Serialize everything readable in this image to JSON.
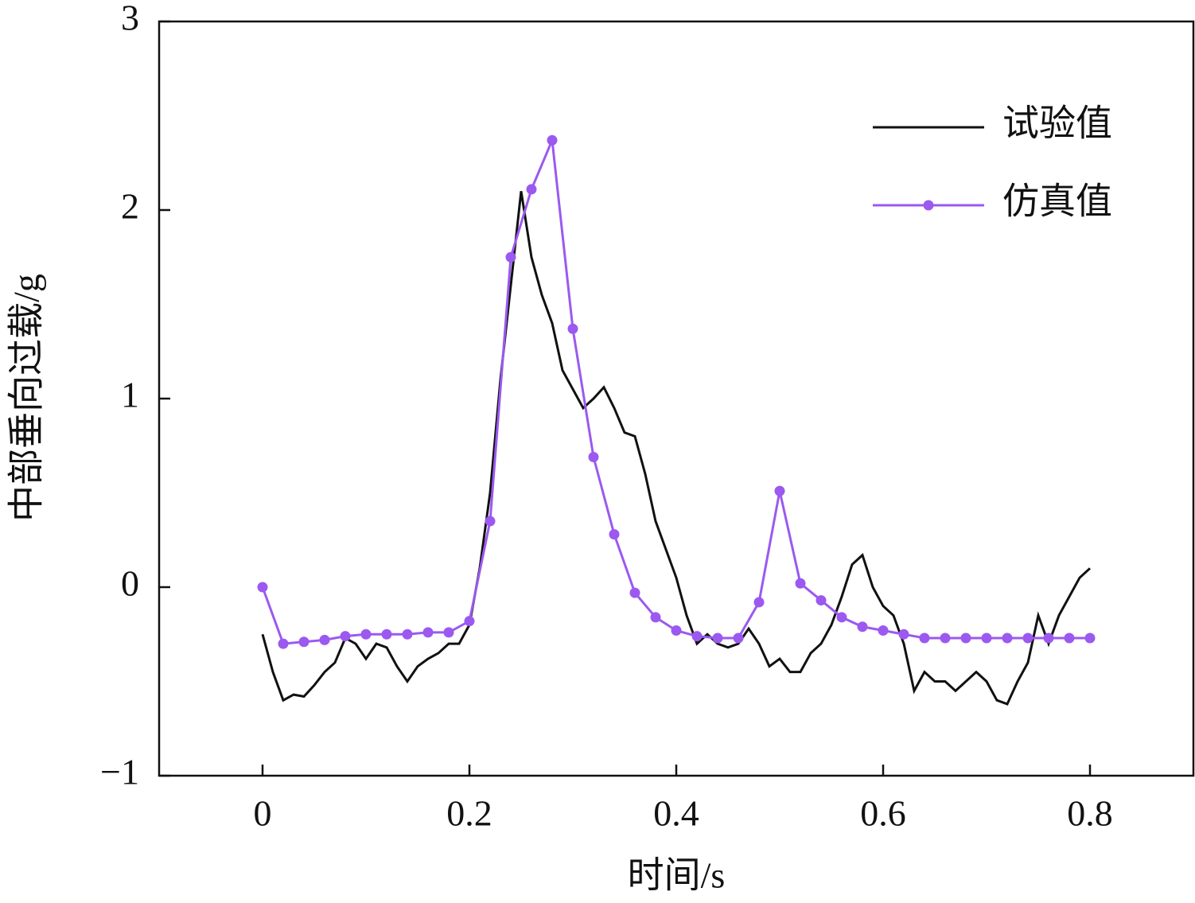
{
  "chart_data": {
    "type": "line",
    "xlabel": "时间/s",
    "ylabel": "中部垂向过载/g",
    "xlim": [
      -0.1,
      0.9
    ],
    "xticks": [
      0,
      0.2,
      0.4,
      0.6,
      0.8
    ],
    "ylim": [
      -1,
      3
    ],
    "yticks": [
      {
        "value": -1,
        "label": "−1"
      },
      0,
      1,
      2,
      3
    ],
    "legend": "upper right",
    "series": [
      {
        "name": "试验值",
        "color": "#111111",
        "marker": false,
        "x": [
          0,
          0.01,
          0.02,
          0.03,
          0.04,
          0.05,
          0.06,
          0.07,
          0.08,
          0.09,
          0.1,
          0.11,
          0.12,
          0.13,
          0.14,
          0.15,
          0.16,
          0.17,
          0.18,
          0.19,
          0.2,
          0.21,
          0.22,
          0.23,
          0.24,
          0.25,
          0.26,
          0.27,
          0.28,
          0.29,
          0.3,
          0.31,
          0.32,
          0.33,
          0.34,
          0.35,
          0.36,
          0.37,
          0.38,
          0.39,
          0.4,
          0.41,
          0.42,
          0.43,
          0.44,
          0.45,
          0.46,
          0.47,
          0.48,
          0.49,
          0.5,
          0.51,
          0.52,
          0.53,
          0.54,
          0.55,
          0.56,
          0.57,
          0.58,
          0.59,
          0.6,
          0.61,
          0.62,
          0.63,
          0.64,
          0.65,
          0.66,
          0.67,
          0.68,
          0.69,
          0.7,
          0.71,
          0.72,
          0.73,
          0.74,
          0.75,
          0.76,
          0.77,
          0.78,
          0.79,
          0.8
        ],
        "values": [
          -0.25,
          -0.45,
          -0.6,
          -0.57,
          -0.58,
          -0.52,
          -0.45,
          -0.4,
          -0.27,
          -0.3,
          -0.38,
          -0.3,
          -0.32,
          -0.42,
          -0.5,
          -0.42,
          -0.38,
          -0.35,
          -0.3,
          -0.3,
          -0.2,
          0.1,
          0.5,
          1.1,
          1.6,
          2.1,
          1.75,
          1.55,
          1.4,
          1.15,
          1.05,
          0.95,
          1.0,
          1.06,
          0.95,
          0.82,
          0.8,
          0.6,
          0.35,
          0.2,
          0.05,
          -0.15,
          -0.3,
          -0.25,
          -0.3,
          -0.32,
          -0.3,
          -0.22,
          -0.3,
          -0.42,
          -0.38,
          -0.45,
          -0.45,
          -0.35,
          -0.3,
          -0.2,
          -0.05,
          0.12,
          0.17,
          0.0,
          -0.1,
          -0.15,
          -0.3,
          -0.55,
          -0.45,
          -0.5,
          -0.5,
          -0.55,
          -0.5,
          -0.45,
          -0.5,
          -0.6,
          -0.62,
          -0.5,
          -0.4,
          -0.15,
          -0.3,
          -0.15,
          -0.05,
          0.05,
          0.1
        ]
      },
      {
        "name": "仿真值",
        "color": "#9b59f0",
        "marker": true,
        "x": [
          0,
          0.02,
          0.04,
          0.06,
          0.08,
          0.1,
          0.12,
          0.14,
          0.16,
          0.18,
          0.2,
          0.22,
          0.24,
          0.26,
          0.28,
          0.3,
          0.32,
          0.34,
          0.36,
          0.38,
          0.4,
          0.42,
          0.44,
          0.46,
          0.48,
          0.5,
          0.52,
          0.54,
          0.56,
          0.58,
          0.6,
          0.62,
          0.64,
          0.66,
          0.68,
          0.7,
          0.72,
          0.74,
          0.76,
          0.78,
          0.8
        ],
        "values": [
          0,
          -0.3,
          -0.29,
          -0.28,
          -0.26,
          -0.25,
          -0.25,
          -0.25,
          -0.24,
          -0.24,
          -0.18,
          0.35,
          1.75,
          2.11,
          2.37,
          1.37,
          0.69,
          0.28,
          -0.03,
          -0.16,
          -0.23,
          -0.26,
          -0.27,
          -0.27,
          -0.08,
          0.51,
          0.02,
          -0.07,
          -0.16,
          -0.21,
          -0.23,
          -0.25,
          -0.27,
          -0.27,
          -0.27,
          -0.27,
          -0.27,
          -0.27,
          -0.27,
          -0.27,
          -0.27
        ]
      }
    ]
  }
}
